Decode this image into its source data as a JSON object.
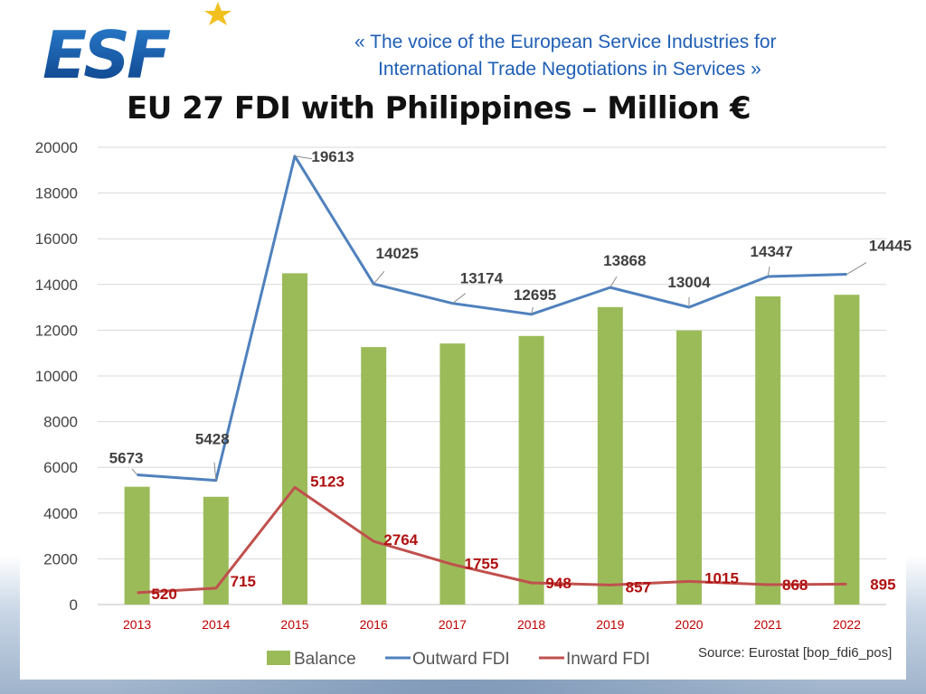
{
  "header": {
    "logo_text": "ESF",
    "tagline_line1": "«  The voice of the European Service Industries for",
    "tagline_line2": "International Trade Negotiations in Services  »",
    "title": "EU 27 FDI with Philippines – Million €"
  },
  "colors": {
    "balance": "#9bbb59",
    "outward": "#4f81bd",
    "inward": "#c0504d"
  },
  "source": "Source: Eurostat [bop_fdi6_pos]",
  "chart_data": {
    "type": "bar",
    "title": "EU 27 FDI with Philippines – Million €",
    "categories": [
      "2013",
      "2014",
      "2015",
      "2016",
      "2017",
      "2018",
      "2019",
      "2020",
      "2021",
      "2022"
    ],
    "ylim": [
      0,
      20000
    ],
    "yticks": [
      0,
      2000,
      4000,
      6000,
      8000,
      10000,
      12000,
      14000,
      16000,
      18000,
      20000
    ],
    "series": [
      {
        "name": "Balance",
        "type": "bar",
        "values": [
          5153,
          4713,
          14490,
          11261,
          11419,
          11747,
          13011,
          11989,
          13479,
          13550
        ]
      },
      {
        "name": "Outward FDI",
        "type": "line",
        "values": [
          5673,
          5428,
          19613,
          14025,
          13174,
          12695,
          13868,
          13004,
          14347,
          14445
        ]
      },
      {
        "name": "Inward FDI",
        "type": "line",
        "values": [
          520,
          715,
          5123,
          2764,
          1755,
          948,
          857,
          1015,
          868,
          895
        ]
      }
    ],
    "legend": [
      "Balance",
      "Outward FDI",
      "Inward FDI"
    ],
    "legend_position": "bottom"
  }
}
